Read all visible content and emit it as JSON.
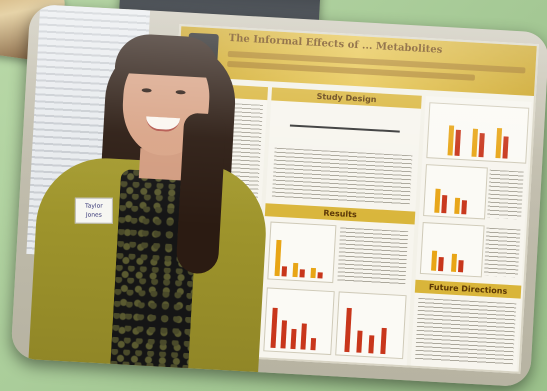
{
  "scene": {
    "description_tags": [
      "photo",
      "poster-presentation"
    ],
    "colors": {
      "background": "#a8cc9a",
      "poster_accent": "#d9b53a",
      "bar_red": "#c8361b",
      "bar_gold": "#e8a516",
      "cardigan": "#a49a2e"
    }
  },
  "poster": {
    "title": "The Informal Effects of ... Metabolites",
    "sections": {
      "study_design": "Study Design",
      "results": "Results",
      "future_directions": "Future Directions"
    }
  },
  "person": {
    "name_tag_line1": "Taylor",
    "name_tag_line2": "Jones"
  }
}
